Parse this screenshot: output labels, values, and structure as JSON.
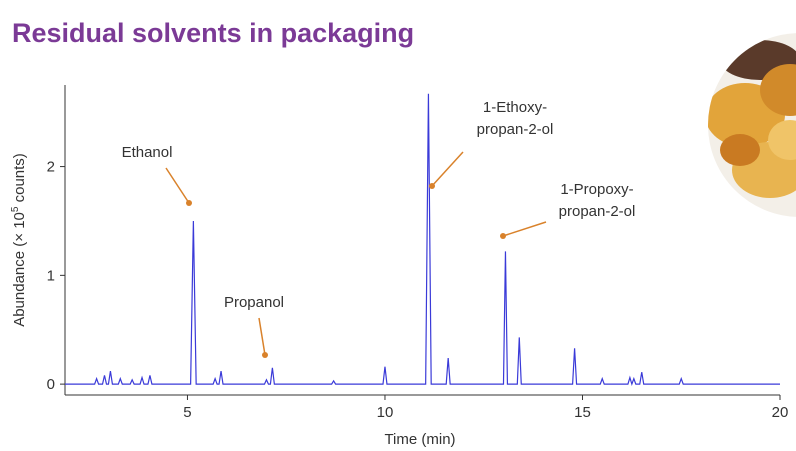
{
  "chart_data": {
    "type": "line",
    "title": "Residual solvents in packaging",
    "x_label": "Time (min)",
    "y_label": [
      "Abundance (× 10",
      "5",
      " counts)"
    ],
    "xlim": [
      1.9,
      20
    ],
    "ylim": [
      -0.1,
      2.75
    ],
    "xticks": [
      5,
      10,
      15,
      20
    ],
    "yticks": [
      0,
      1,
      2
    ],
    "series": [
      {
        "color": "#3a3ad8",
        "x": [
          1.9,
          2.65,
          2.7,
          2.75,
          2.85,
          2.9,
          2.95,
          3.0,
          3.05,
          3.1,
          3.25,
          3.3,
          3.35,
          3.55,
          3.6,
          3.65,
          3.8,
          3.85,
          3.9,
          4.0,
          4.05,
          4.1,
          5.08,
          5.15,
          5.22,
          5.65,
          5.7,
          5.75,
          5.8,
          5.85,
          5.9,
          6.95,
          7.0,
          7.05,
          7.1,
          7.15,
          7.2,
          8.65,
          8.7,
          8.75,
          9.95,
          10.0,
          10.05,
          11.03,
          11.1,
          11.17,
          11.55,
          11.6,
          11.65,
          13.0,
          13.05,
          13.1,
          13.35,
          13.4,
          13.45,
          14.75,
          14.8,
          14.85,
          15.45,
          15.5,
          15.55,
          16.15,
          16.2,
          16.25,
          16.3,
          16.35,
          16.45,
          16.5,
          16.55,
          17.45,
          17.5,
          17.55,
          20
        ],
        "values": [
          0,
          0,
          0.05,
          0,
          0,
          0.08,
          0,
          0,
          0.12,
          0,
          0,
          0.05,
          0,
          0,
          0.04,
          0,
          0,
          0.06,
          0,
          0,
          0.08,
          0,
          0,
          1.5,
          0,
          0,
          0.05,
          0,
          0,
          0.12,
          0,
          0,
          0.04,
          0,
          0,
          0.15,
          0,
          0,
          0.03,
          0,
          0,
          0.16,
          0,
          0,
          2.67,
          0,
          0,
          0.24,
          0,
          0,
          1.22,
          0,
          0,
          0.43,
          0,
          0,
          0.33,
          0,
          0,
          0.05,
          0,
          0,
          0.06,
          0,
          0.05,
          0,
          0,
          0.11,
          0,
          0,
          0.05,
          0,
          0
        ]
      }
    ],
    "annotations": [
      {
        "text": [
          "Ethanol"
        ]
      },
      {
        "text": [
          "Propanol"
        ]
      },
      {
        "text": [
          "1-Ethoxy-",
          "propan-2-ol"
        ]
      },
      {
        "text": [
          "1-Propoxy-",
          "propan-2-ol"
        ]
      }
    ]
  }
}
